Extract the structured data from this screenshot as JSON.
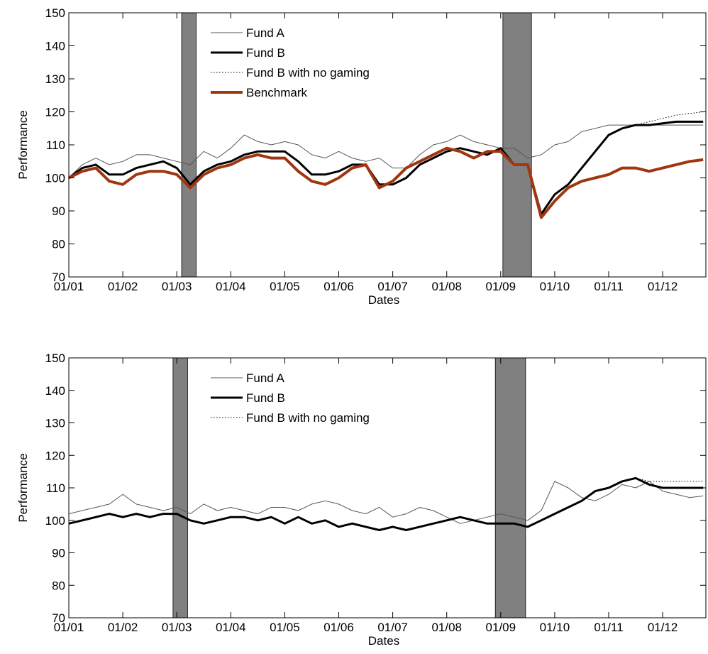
{
  "chart_data": [
    {
      "type": "line",
      "xlabel": "Dates",
      "ylabel": "Performance",
      "xlim": [
        0,
        11.8
      ],
      "ylim": [
        70,
        150
      ],
      "xticks": [
        {
          "value": 0,
          "label": "01/01"
        },
        {
          "value": 1,
          "label": "01/02"
        },
        {
          "value": 2,
          "label": "01/03"
        },
        {
          "value": 3,
          "label": "01/04"
        },
        {
          "value": 4,
          "label": "01/05"
        },
        {
          "value": 5,
          "label": "01/06"
        },
        {
          "value": 6,
          "label": "01/07"
        },
        {
          "value": 7,
          "label": "01/08"
        },
        {
          "value": 8,
          "label": "01/09"
        },
        {
          "value": 9,
          "label": "01/10"
        },
        {
          "value": 10,
          "label": "01/11"
        },
        {
          "value": 11,
          "label": "01/12"
        }
      ],
      "yticks": [
        70,
        80,
        90,
        100,
        110,
        120,
        130,
        140,
        150
      ],
      "shaded_regions": [
        [
          2.09,
          2.36
        ],
        [
          8.04,
          8.57
        ]
      ],
      "shade_color": "#808080",
      "x": [
        0,
        0.25,
        0.5,
        0.75,
        1,
        1.25,
        1.5,
        1.75,
        2,
        2.25,
        2.5,
        2.75,
        3,
        3.25,
        3.5,
        3.75,
        4,
        4.25,
        4.5,
        4.75,
        5,
        5.25,
        5.5,
        5.75,
        6,
        6.25,
        6.5,
        6.75,
        7,
        7.25,
        7.5,
        7.75,
        8,
        8.25,
        8.5,
        8.75,
        9,
        9.25,
        9.5,
        9.75,
        10,
        10.25,
        10.5,
        10.75,
        11,
        11.25,
        11.5,
        11.75
      ],
      "series": [
        {
          "name": "Fund A",
          "color": "#555555",
          "line_width": 1,
          "linestyle": "solid",
          "values": [
            100,
            104,
            106,
            104,
            105,
            107,
            107,
            106,
            105,
            104,
            108,
            106,
            109,
            113,
            111,
            110,
            111,
            110,
            107,
            106,
            108,
            106,
            105,
            106,
            103,
            103,
            107,
            110,
            111,
            113,
            111,
            110,
            109,
            109,
            106,
            107,
            110,
            111,
            114,
            115,
            116,
            116,
            116,
            116,
            116,
            116,
            116,
            116
          ]
        },
        {
          "name": "Fund B",
          "color": "#000000",
          "line_width": 3,
          "linestyle": "solid",
          "values": [
            100,
            103,
            104,
            101,
            101,
            103,
            104,
            105,
            103,
            98,
            102,
            104,
            105,
            107,
            108,
            108,
            108,
            105,
            101,
            101,
            102,
            104,
            104,
            98,
            98,
            100,
            104,
            106,
            108,
            109,
            108,
            107,
            109,
            104,
            104,
            89,
            95,
            98,
            103,
            108,
            113,
            115,
            116,
            116,
            116.5,
            117,
            117,
            117
          ]
        },
        {
          "name": "Fund B with no gaming",
          "color": "#000000",
          "line_width": 1,
          "linestyle": "dotted",
          "values": [
            100,
            103,
            104,
            101,
            101,
            103,
            104,
            105,
            103,
            98,
            102,
            104,
            105,
            107,
            108,
            108,
            108,
            105,
            101,
            101,
            102,
            104,
            104,
            98,
            98,
            100,
            104,
            106,
            108,
            109,
            108,
            107,
            109,
            104,
            104,
            89,
            95,
            98,
            103,
            108,
            113,
            115,
            116,
            117,
            118,
            119,
            119.5,
            120
          ]
        },
        {
          "name": "Benchmark",
          "color": "#a0360f",
          "line_width": 4,
          "linestyle": "solid",
          "values": [
            100,
            102,
            103,
            99,
            98,
            101,
            102,
            102,
            101,
            97,
            101,
            103,
            104,
            106,
            107,
            106,
            106,
            102,
            99,
            98,
            100,
            103,
            104,
            97,
            99,
            103,
            105,
            107,
            109,
            108,
            106,
            108,
            108,
            104,
            104,
            88,
            93,
            97,
            99,
            100,
            101,
            103,
            103,
            102,
            103,
            104,
            105,
            105.5
          ]
        }
      ]
    },
    {
      "type": "line",
      "xlabel": "Dates",
      "ylabel": "Performance",
      "xlim": [
        0,
        11.8
      ],
      "ylim": [
        70,
        150
      ],
      "xticks": [
        {
          "value": 0,
          "label": "01/01"
        },
        {
          "value": 1,
          "label": "01/02"
        },
        {
          "value": 2,
          "label": "01/03"
        },
        {
          "value": 3,
          "label": "01/04"
        },
        {
          "value": 4,
          "label": "01/05"
        },
        {
          "value": 5,
          "label": "01/06"
        },
        {
          "value": 6,
          "label": "01/07"
        },
        {
          "value": 7,
          "label": "01/08"
        },
        {
          "value": 8,
          "label": "01/09"
        },
        {
          "value": 9,
          "label": "01/10"
        },
        {
          "value": 10,
          "label": "01/11"
        },
        {
          "value": 11,
          "label": "01/12"
        }
      ],
      "yticks": [
        70,
        80,
        90,
        100,
        110,
        120,
        130,
        140,
        150
      ],
      "shaded_regions": [
        [
          1.93,
          2.2
        ],
        [
          7.9,
          8.46
        ]
      ],
      "shade_color": "#808080",
      "x": [
        0,
        0.25,
        0.5,
        0.75,
        1,
        1.25,
        1.5,
        1.75,
        2,
        2.25,
        2.5,
        2.75,
        3,
        3.25,
        3.5,
        3.75,
        4,
        4.25,
        4.5,
        4.75,
        5,
        5.25,
        5.5,
        5.75,
        6,
        6.25,
        6.5,
        6.75,
        7,
        7.25,
        7.5,
        7.75,
        8,
        8.25,
        8.5,
        8.75,
        9,
        9.25,
        9.5,
        9.75,
        10,
        10.25,
        10.5,
        10.75,
        11,
        11.25,
        11.5,
        11.75
      ],
      "series": [
        {
          "name": "Fund A",
          "color": "#555555",
          "line_width": 1,
          "linestyle": "solid",
          "values": [
            102,
            103,
            104,
            105,
            108,
            105,
            104,
            103,
            104,
            102,
            105,
            103,
            104,
            103,
            102,
            104,
            104,
            103,
            105,
            106,
            105,
            103,
            102,
            104,
            101,
            102,
            104,
            103,
            101,
            99,
            100,
            101,
            102,
            101,
            100,
            103,
            112,
            110,
            107,
            106,
            108,
            111,
            110,
            112,
            109,
            108,
            107,
            107.5
          ]
        },
        {
          "name": "Fund B",
          "color": "#000000",
          "line_width": 3,
          "linestyle": "solid",
          "values": [
            99,
            100,
            101,
            102,
            101,
            102,
            101,
            102,
            102,
            100,
            99,
            100,
            101,
            101,
            100,
            101,
            99,
            101,
            99,
            100,
            98,
            99,
            98,
            97,
            98,
            97,
            98,
            99,
            100,
            101,
            100,
            99,
            99,
            99,
            98,
            100,
            102,
            104,
            106,
            109,
            110,
            112,
            113,
            111,
            110,
            110,
            110,
            110
          ]
        },
        {
          "name": "Fund B with no gaming",
          "color": "#000000",
          "line_width": 1,
          "linestyle": "dotted",
          "values": [
            99,
            100,
            101,
            102,
            101,
            102,
            101,
            102,
            102,
            100,
            99,
            100,
            101,
            101,
            100,
            101,
            99,
            101,
            99,
            100,
            98,
            99,
            98,
            97,
            98,
            97,
            98,
            99,
            100,
            101,
            100,
            99,
            99,
            99,
            98,
            100,
            102,
            104,
            106,
            109,
            110,
            112,
            113,
            112,
            112,
            112,
            112,
            112
          ]
        }
      ]
    }
  ]
}
